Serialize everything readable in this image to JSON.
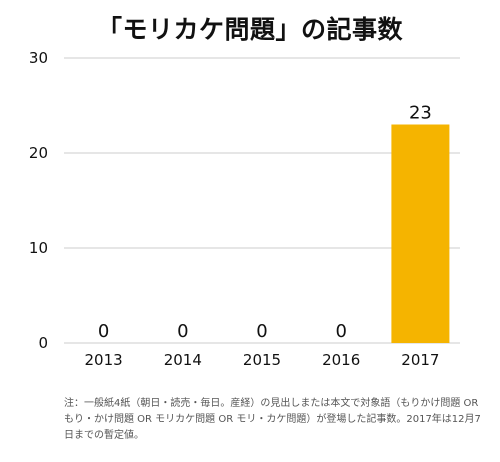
{
  "chart_data": {
    "type": "bar",
    "title": "「モリカケ問題」の記事数",
    "categories": [
      "2013",
      "2014",
      "2015",
      "2016",
      "2017"
    ],
    "values": [
      0,
      0,
      0,
      0,
      23
    ],
    "data_labels": [
      "0",
      "0",
      "0",
      "0",
      "23"
    ],
    "ylim": [
      0,
      30
    ],
    "yticks": [
      "0",
      "10",
      "20",
      "30"
    ],
    "grid": true,
    "bar_color": "#F5B400",
    "grid_color": "#CCCCCC",
    "xlabel": "",
    "ylabel": ""
  },
  "footnote": "注：一般紙4紙（朝日・読売・毎日。産経）の見出しまたは本文で対象語（もりかけ問題 OR もり・かけ問題 OR モリカケ問題 OR モリ・カケ問題）が登場した記事数。2017年は12月7日までの暫定値。"
}
